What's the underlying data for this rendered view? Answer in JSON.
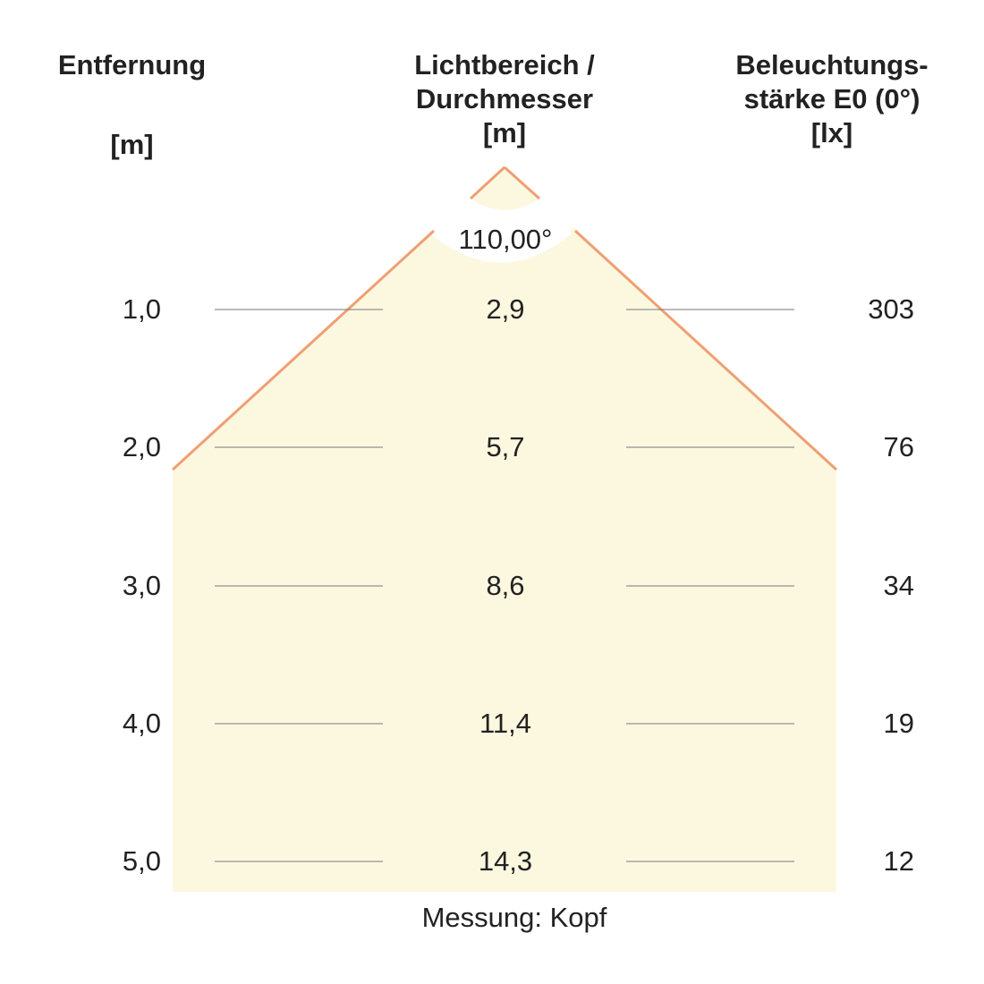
{
  "headers": {
    "distance": "Entfernung",
    "distance_unit": "[m]",
    "diameter_lines": [
      "Lichtbereich /",
      "Durchmesser",
      "[m]"
    ],
    "illuminance_lines": [
      "Beleuchtungs-",
      "stärke E0 (0°)",
      "[lx]"
    ]
  },
  "beam_angle": "110,00°",
  "rows": [
    {
      "distance": "1,0",
      "diameter": "2,9",
      "illuminance": "303"
    },
    {
      "distance": "2,0",
      "diameter": "5,7",
      "illuminance": "76"
    },
    {
      "distance": "3,0",
      "diameter": "8,6",
      "illuminance": "34"
    },
    {
      "distance": "4,0",
      "diameter": "11,4",
      "illuminance": "19"
    },
    {
      "distance": "5,0",
      "diameter": "14,3",
      "illuminance": "12"
    }
  ],
  "footer": "Messung: Kopf",
  "colors": {
    "beam_fill": "#fcf8e0",
    "beam_edge": "#ef9f73",
    "rule_line": "#777777",
    "text": "#222222"
  }
}
